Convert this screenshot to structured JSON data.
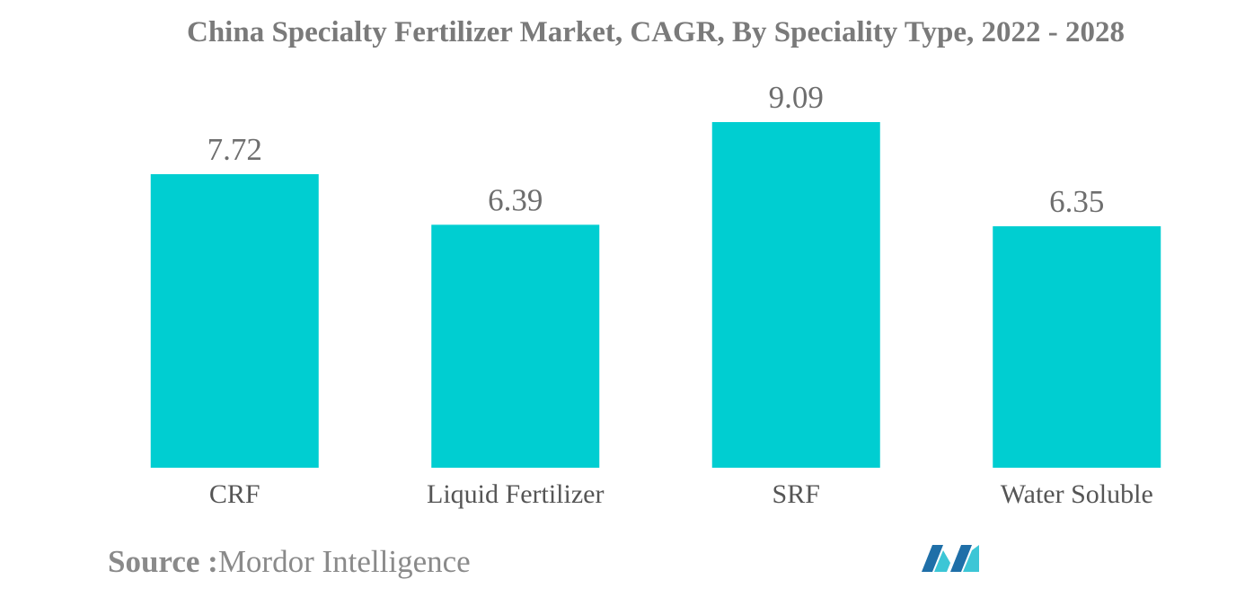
{
  "colors": {
    "bar": "#00ced1",
    "logo_dark": "#1f6fa8",
    "logo_light": "#3cc6d6"
  },
  "source": {
    "label": "Source :",
    "value": "Mordor Intelligence"
  },
  "logo_icon": "mordor-intelligence-logo",
  "chart_data": {
    "type": "bar",
    "title": "China Specialty Fertilizer Market, CAGR, By Speciality Type, 2022 - 2028",
    "categories": [
      "CRF",
      "Liquid Fertilizer",
      "SRF",
      "Water Soluble"
    ],
    "values": [
      7.72,
      6.39,
      9.09,
      6.35
    ],
    "data_labels": [
      "7.72",
      "6.39",
      "9.09",
      "6.35"
    ],
    "xlabel": "",
    "ylabel": "",
    "ylim": [
      0,
      9.09
    ],
    "grid": false,
    "legend": "none"
  }
}
